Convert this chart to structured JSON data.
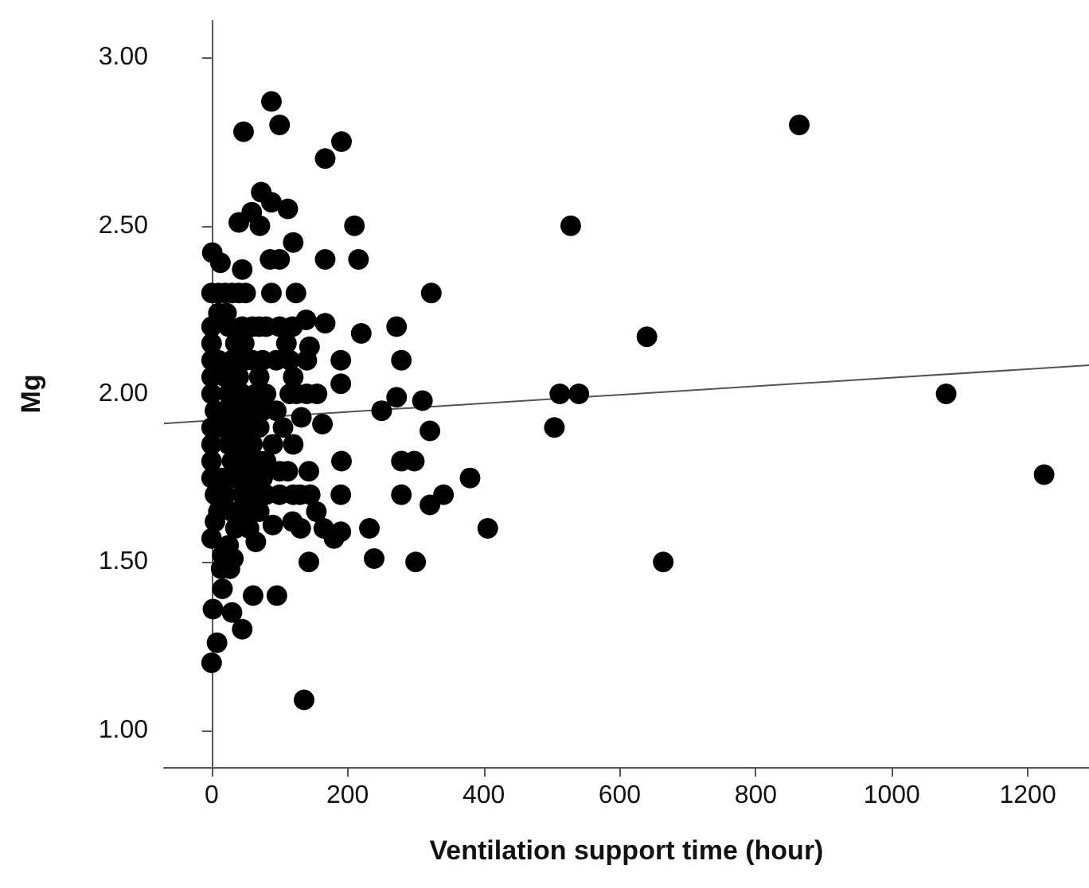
{
  "chart_data": {
    "type": "scatter",
    "xlabel": "Ventilation support time (hour)",
    "ylabel": "Mg",
    "grid": false,
    "xlim": [
      -70,
      1290
    ],
    "xticks": [
      0,
      200,
      400,
      600,
      800,
      1000,
      1200
    ],
    "ylim": [
      0.89,
      3.11
    ],
    "yticks": [
      {
        "value": 1,
        "label": "1.00"
      },
      {
        "value": 1.5,
        "label": "1.50"
      },
      {
        "value": 2,
        "label": "2.00"
      },
      {
        "value": 2.5,
        "label": "2.50"
      },
      {
        "value": 3,
        "label": "3.00"
      }
    ],
    "series": [
      {
        "color": "#000000",
        "marker": "circle",
        "x": [
          88,
          47,
          100,
          167,
          191,
          864,
          73,
          88,
          112,
          59,
          40,
          71,
          210,
          528,
          120,
          1,
          13,
          45,
          86,
          100,
          167,
          216,
          0,
          10,
          20,
          30,
          40,
          50,
          88,
          124,
          323,
          0,
          25,
          45,
          60,
          70,
          80,
          100,
          119,
          139,
          167,
          272,
          10,
          22,
          220,
          640,
          0,
          35,
          48,
          110,
          144,
          190,
          279,
          0,
          10,
          30,
          50,
          60,
          75,
          95,
          115,
          140,
          0,
          20,
          40,
          70,
          120,
          190,
          272,
          310,
          512,
          540,
          1080,
          0,
          25,
          45,
          65,
          80,
          115,
          125,
          140,
          155,
          250,
          132,
          5,
          20,
          35,
          55,
          75,
          95,
          504,
          321,
          163,
          0,
          15,
          30,
          50,
          70,
          105,
          0,
          25,
          45,
          60,
          90,
          120,
          191,
          279,
          298,
          0,
          30,
          50,
          70,
          80,
          380,
          1224,
          143,
          100,
          112,
          0,
          15,
          35,
          55,
          75,
          190,
          279,
          341,
          321,
          5,
          20,
          45,
          60,
          80,
          100,
          120,
          130,
          145,
          406,
          232,
          154,
          10,
          30,
          50,
          70,
          165,
          180,
          190,
          131,
          119,
          90,
          5,
          35,
          55,
          0,
          25,
          65,
          239,
          300,
          664,
          143,
          32,
          16,
          27,
          14,
          61,
          96,
          16,
          2,
          30,
          45,
          8,
          0,
          136
        ],
        "values": [
          2.87,
          2.78,
          2.8,
          2.7,
          2.75,
          2.8,
          2.6,
          2.57,
          2.55,
          2.54,
          2.51,
          2.5,
          2.5,
          2.5,
          2.45,
          2.42,
          2.39,
          2.37,
          2.4,
          2.4,
          2.4,
          2.4,
          2.3,
          2.3,
          2.3,
          2.3,
          2.3,
          2.3,
          2.3,
          2.3,
          2.3,
          2.2,
          2.2,
          2.2,
          2.2,
          2.2,
          2.2,
          2.2,
          2.2,
          2.22,
          2.21,
          2.2,
          2.24,
          2.24,
          2.18,
          2.17,
          2.15,
          2.15,
          2.15,
          2.15,
          2.14,
          2.1,
          2.1,
          2.1,
          2.1,
          2.1,
          2.1,
          2.1,
          2.1,
          2.1,
          2.1,
          2.1,
          2.05,
          2.05,
          2.05,
          2.05,
          2.05,
          2.03,
          1.99,
          1.98,
          2,
          2,
          2,
          2,
          2,
          2,
          2,
          2,
          2,
          2,
          2,
          2,
          1.95,
          1.93,
          1.95,
          1.95,
          1.95,
          1.95,
          1.95,
          1.95,
          1.9,
          1.89,
          1.91,
          1.9,
          1.9,
          1.9,
          1.9,
          1.9,
          1.9,
          1.85,
          1.85,
          1.85,
          1.85,
          1.85,
          1.85,
          1.8,
          1.8,
          1.8,
          1.8,
          1.8,
          1.8,
          1.8,
          1.8,
          1.75,
          1.76,
          1.77,
          1.77,
          1.77,
          1.75,
          1.75,
          1.75,
          1.75,
          1.75,
          1.7,
          1.7,
          1.7,
          1.67,
          1.7,
          1.7,
          1.7,
          1.7,
          1.7,
          1.7,
          1.7,
          1.7,
          1.7,
          1.6,
          1.6,
          1.65,
          1.65,
          1.65,
          1.65,
          1.65,
          1.6,
          1.57,
          1.59,
          1.6,
          1.62,
          1.61,
          1.62,
          1.6,
          1.6,
          1.57,
          1.55,
          1.56,
          1.51,
          1.5,
          1.5,
          1.5,
          1.51,
          1.52,
          1.48,
          1.48,
          1.4,
          1.4,
          1.42,
          1.36,
          1.35,
          1.3,
          1.26,
          1.2,
          1.09
        ]
      },
      {
        "type": "line",
        "color": "#555555",
        "marker": "none",
        "x": [
          -70,
          1290
        ],
        "values": [
          1.912,
          2.085
        ]
      }
    ]
  }
}
